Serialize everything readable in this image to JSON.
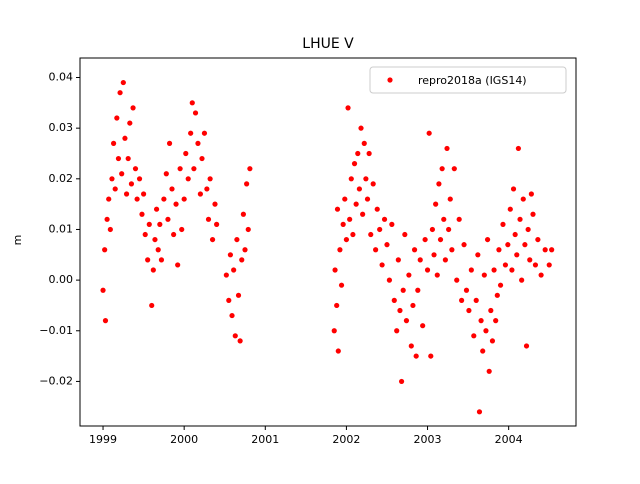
{
  "chart_data": {
    "type": "scatter",
    "title": "LHUE V",
    "y_label": "m",
    "legend_position": "upper right",
    "grid": false,
    "xlim": [
      1998.716,
      2004.83
    ],
    "ylim": [
      -0.0288,
      0.04385
    ],
    "xticks": [
      1999,
      2000,
      2001,
      2002,
      2003,
      2004
    ],
    "yticks": [
      {
        "value": -0.02,
        "label": "−0.02"
      },
      {
        "value": -0.01,
        "label": "−0.01"
      },
      {
        "value": 0,
        "label": "0.00"
      },
      {
        "value": 0.01,
        "label": "0.01"
      },
      {
        "value": 0.02,
        "label": "0.02"
      },
      {
        "value": 0.03,
        "label": "0.03"
      },
      {
        "value": 0.04,
        "label": "0.04"
      }
    ],
    "series": [
      {
        "name": "repro2018a (IGS14)",
        "color": "#ff0000",
        "x": [
          1999.0,
          1999.02,
          1999.03,
          1999.05,
          1999.07,
          1999.09,
          1999.11,
          1999.13,
          1999.15,
          1999.17,
          1999.19,
          1999.21,
          1999.23,
          1999.25,
          1999.27,
          1999.29,
          1999.31,
          1999.33,
          1999.35,
          1999.37,
          1999.4,
          1999.42,
          1999.45,
          1999.48,
          1999.5,
          1999.52,
          1999.55,
          1999.57,
          1999.6,
          1999.62,
          1999.64,
          1999.66,
          1999.68,
          1999.7,
          1999.72,
          1999.75,
          1999.78,
          1999.8,
          1999.82,
          1999.85,
          1999.87,
          1999.9,
          1999.92,
          1999.95,
          1999.97,
          2000.0,
          2000.02,
          2000.05,
          2000.08,
          2000.1,
          2000.12,
          2000.14,
          2000.17,
          2000.2,
          2000.22,
          2000.25,
          2000.28,
          2000.3,
          2000.32,
          2000.35,
          2000.38,
          2000.4,
          2000.52,
          2000.55,
          2000.57,
          2000.59,
          2000.61,
          2000.63,
          2000.65,
          2000.67,
          2000.69,
          2000.71,
          2000.73,
          2000.75,
          2000.77,
          2000.79,
          2000.81,
          2001.85,
          2001.86,
          2001.88,
          2001.89,
          2001.9,
          2001.92,
          2001.94,
          2001.96,
          2001.98,
          2002.0,
          2002.02,
          2002.04,
          2002.06,
          2002.08,
          2002.1,
          2002.12,
          2002.14,
          2002.16,
          2002.18,
          2002.2,
          2002.22,
          2002.24,
          2002.26,
          2002.28,
          2002.3,
          2002.33,
          2002.36,
          2002.38,
          2002.41,
          2002.44,
          2002.47,
          2002.5,
          2002.53,
          2002.56,
          2002.59,
          2002.62,
          2002.64,
          2002.66,
          2002.68,
          2002.7,
          2002.72,
          2002.74,
          2002.77,
          2002.8,
          2002.82,
          2002.84,
          2002.86,
          2002.88,
          2002.91,
          2002.94,
          2002.97,
          2003.0,
          2003.02,
          2003.04,
          2003.06,
          2003.08,
          2003.1,
          2003.12,
          2003.14,
          2003.16,
          2003.18,
          2003.2,
          2003.22,
          2003.24,
          2003.26,
          2003.28,
          2003.3,
          2003.33,
          2003.36,
          2003.39,
          2003.42,
          2003.45,
          2003.48,
          2003.51,
          2003.54,
          2003.57,
          2003.6,
          2003.62,
          2003.64,
          2003.66,
          2003.68,
          2003.7,
          2003.72,
          2003.74,
          2003.76,
          2003.78,
          2003.8,
          2003.82,
          2003.84,
          2003.86,
          2003.88,
          2003.9,
          2003.93,
          2003.96,
          2003.99,
          2004.02,
          2004.04,
          2004.06,
          2004.08,
          2004.1,
          2004.12,
          2004.14,
          2004.16,
          2004.18,
          2004.2,
          2004.22,
          2004.24,
          2004.26,
          2004.28,
          2004.3,
          2004.33,
          2004.36,
          2004.4,
          2004.45,
          2004.5,
          2004.53
        ],
        "values": [
          -0.002,
          0.006,
          -0.008,
          0.012,
          0.016,
          0.01,
          0.02,
          0.027,
          0.018,
          0.032,
          0.024,
          0.037,
          0.021,
          0.039,
          0.028,
          0.017,
          0.024,
          0.031,
          0.019,
          0.034,
          0.022,
          0.016,
          0.02,
          0.013,
          0.017,
          0.009,
          0.004,
          0.011,
          -0.005,
          0.002,
          0.008,
          0.014,
          0.006,
          0.011,
          0.004,
          0.016,
          0.021,
          0.012,
          0.027,
          0.018,
          0.009,
          0.015,
          0.003,
          0.022,
          0.01,
          0.016,
          0.025,
          0.02,
          0.029,
          0.035,
          0.022,
          0.033,
          0.027,
          0.017,
          0.024,
          0.029,
          0.018,
          0.012,
          0.02,
          0.008,
          0.015,
          0.011,
          0.001,
          -0.004,
          0.005,
          -0.007,
          0.002,
          -0.011,
          0.008,
          -0.003,
          -0.012,
          0.004,
          0.013,
          0.006,
          0.019,
          0.01,
          0.022,
          -0.01,
          0.002,
          -0.005,
          0.014,
          -0.014,
          0.006,
          -0.001,
          0.011,
          0.016,
          0.008,
          0.034,
          0.012,
          0.02,
          0.009,
          0.023,
          0.015,
          0.025,
          0.018,
          0.03,
          0.013,
          0.027,
          0.02,
          0.016,
          0.025,
          0.009,
          0.019,
          0.006,
          0.014,
          0.01,
          0.003,
          0.012,
          0.007,
          0.0,
          0.011,
          -0.004,
          -0.01,
          0.004,
          -0.006,
          -0.02,
          -0.002,
          0.009,
          -0.008,
          0.001,
          -0.013,
          -0.005,
          0.006,
          -0.015,
          -0.002,
          0.004,
          -0.009,
          0.008,
          0.002,
          0.029,
          -0.015,
          0.01,
          0.005,
          0.015,
          0.001,
          0.019,
          0.008,
          0.022,
          0.012,
          0.004,
          0.026,
          0.01,
          0.016,
          0.006,
          0.022,
          0.0,
          0.012,
          -0.004,
          0.007,
          -0.002,
          -0.006,
          0.002,
          -0.011,
          -0.004,
          0.005,
          -0.026,
          -0.008,
          -0.014,
          0.001,
          -0.01,
          0.008,
          -0.018,
          -0.006,
          -0.012,
          0.002,
          -0.008,
          -0.003,
          0.006,
          -0.001,
          0.011,
          0.003,
          0.007,
          0.014,
          0.002,
          0.018,
          0.009,
          0.005,
          0.026,
          0.012,
          0.0,
          0.016,
          0.007,
          -0.013,
          0.01,
          0.004,
          0.017,
          0.013,
          0.003,
          0.008,
          0.001,
          0.006,
          0.003,
          0.006
        ]
      }
    ]
  }
}
